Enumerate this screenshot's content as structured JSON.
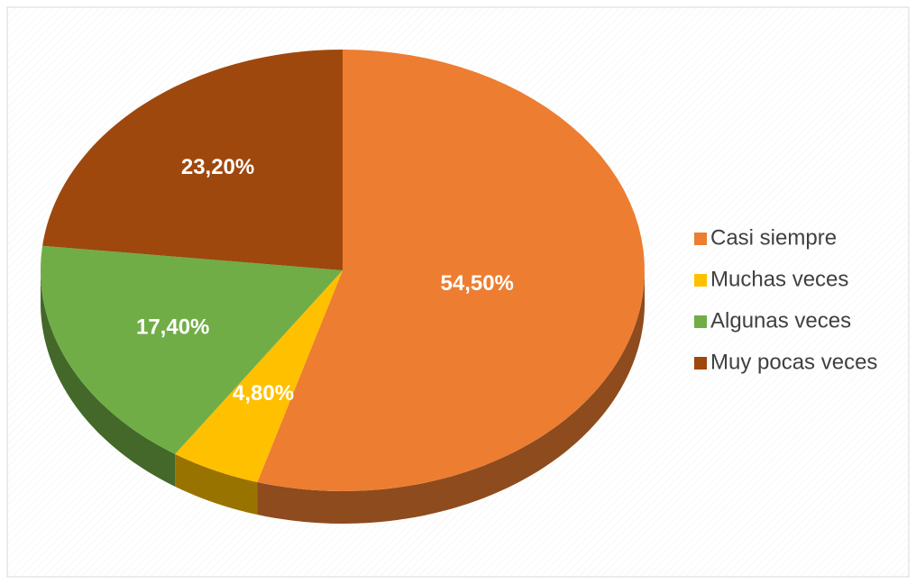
{
  "chart_data": {
    "type": "pie",
    "categories": [
      "Casi siempre",
      "Muchas veces",
      "Algunas veces",
      "Muy pocas veces"
    ],
    "values": [
      54.5,
      4.8,
      17.4,
      23.2
    ],
    "value_labels": [
      "54,50%",
      "4,80%",
      "17,40%",
      "23,20%"
    ],
    "colors": [
      "#ed7d31",
      "#ffc000",
      "#70ad47",
      "#9e480e"
    ],
    "legend": "right"
  }
}
